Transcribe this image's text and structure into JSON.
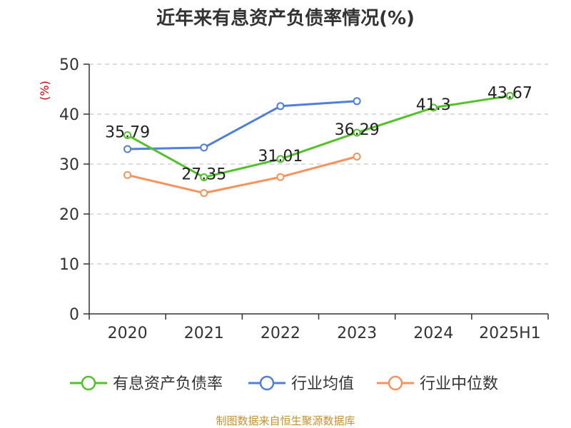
{
  "chart_data": {
    "type": "line",
    "title": "近年来有息资产负债率情况(%)",
    "ylabel": "(%)",
    "xlabel": "",
    "categories": [
      "2020",
      "2021",
      "2022",
      "2023",
      "2024",
      "2025H1"
    ],
    "ylim": [
      0,
      50
    ],
    "yticks": [
      "0",
      "10",
      "20",
      "30",
      "40",
      "50"
    ],
    "grid": true,
    "legend_position": "bottom",
    "series": [
      {
        "name": "有息资产负债率",
        "color": "#52c22b",
        "values": [
          35.79,
          27.35,
          31.01,
          36.29,
          41.3,
          43.67
        ],
        "labels": [
          "35.79",
          "27.35",
          "31.01",
          "36.29",
          "41.3",
          "43.67"
        ]
      },
      {
        "name": "行业均值",
        "color": "#4f7fd8",
        "values": [
          33.0,
          33.3,
          41.6,
          42.6,
          null,
          null
        ]
      },
      {
        "name": "行业中位数",
        "color": "#f7925a",
        "values": [
          27.8,
          24.2,
          27.4,
          31.5,
          null,
          null
        ]
      }
    ]
  },
  "source": "制图数据来自恒生聚源数据库"
}
